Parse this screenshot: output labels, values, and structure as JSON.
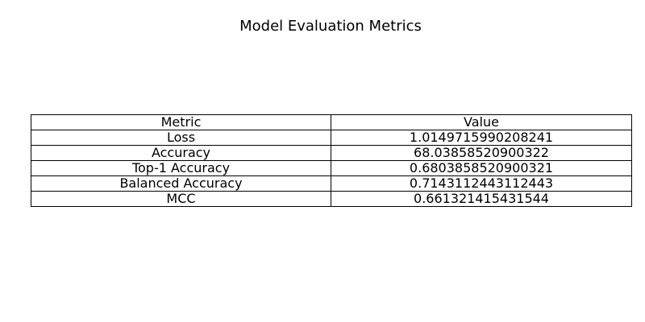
{
  "figure": {
    "title": "Model Evaluation Metrics"
  },
  "chart_data": {
    "type": "table",
    "title": "Model Evaluation Metrics",
    "columns": [
      "Metric",
      "Value"
    ],
    "rows": [
      [
        "Loss",
        "1.0149715990208241"
      ],
      [
        "Accuracy",
        "68.03858520900322"
      ],
      [
        "Top-1 Accuracy",
        "0.6803858520900321"
      ],
      [
        "Balanced Accuracy",
        "0.7143112443112443"
      ],
      [
        "MCC",
        "0.661321415431544"
      ]
    ]
  }
}
